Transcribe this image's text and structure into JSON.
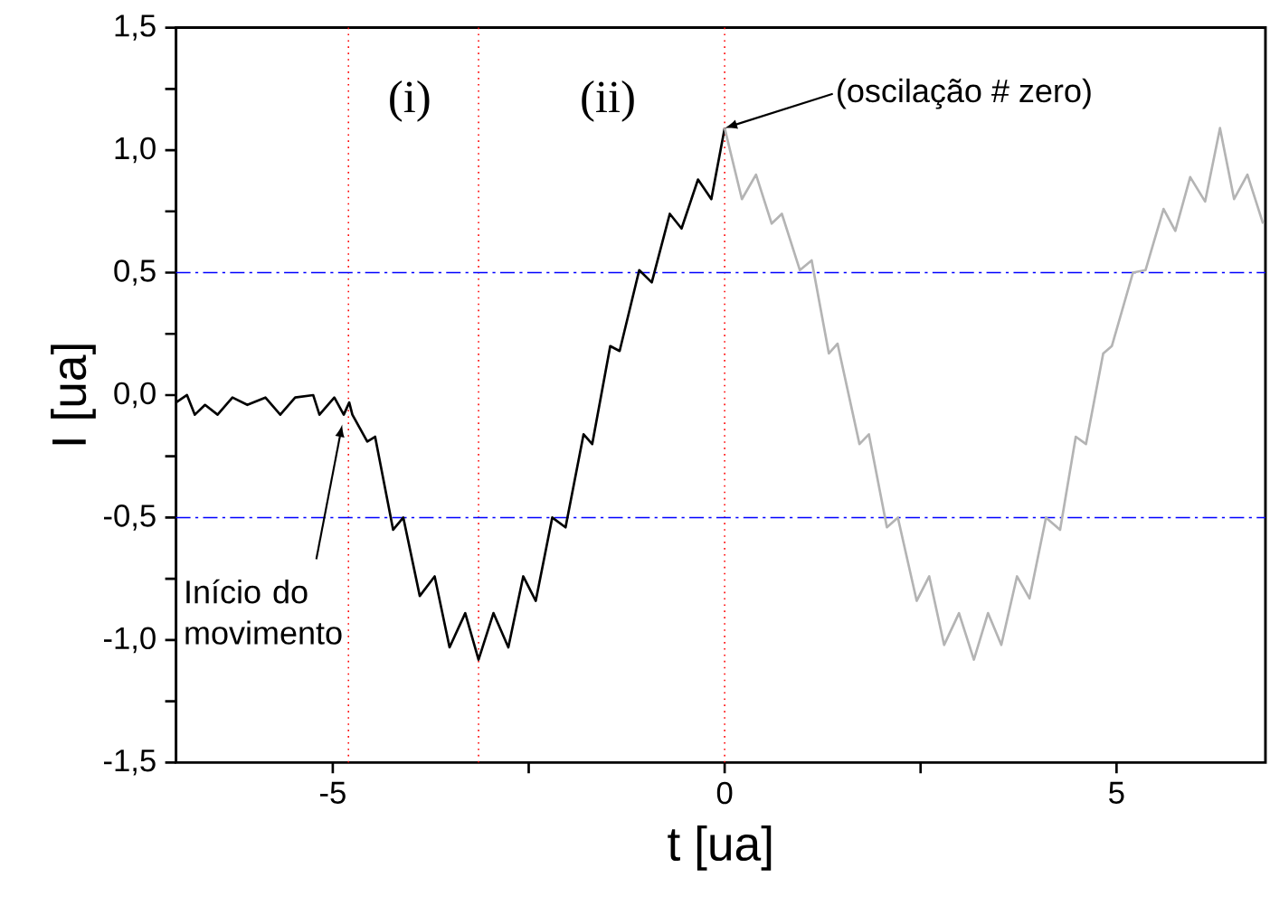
{
  "chart_data": {
    "type": "line",
    "xlabel": "t [ua]",
    "ylabel": "I [ua]",
    "xlim": [
      -7,
      6.9
    ],
    "ylim": [
      -1.5,
      1.5
    ],
    "xticks": [
      -5,
      {
        "value": -2.5,
        "label": null
      },
      0,
      {
        "value": 2.5,
        "label": null
      },
      5
    ],
    "yticks": [
      {
        "value": -1.5,
        "label": "-1,5"
      },
      {
        "value": -1.25,
        "label": null
      },
      {
        "value": -1.0,
        "label": "-1,0"
      },
      {
        "value": -0.75,
        "label": null
      },
      {
        "value": -0.5,
        "label": "-0,5"
      },
      {
        "value": -0.25,
        "label": null
      },
      {
        "value": 0.0,
        "label": "0,0"
      },
      {
        "value": 0.25,
        "label": null
      },
      {
        "value": 0.5,
        "label": "0,5"
      },
      {
        "value": 0.75,
        "label": null
      },
      {
        "value": 1.0,
        "label": "1,0"
      },
      {
        "value": 1.25,
        "label": null
      },
      {
        "value": 1.5,
        "label": "1,5"
      }
    ],
    "marker": "none",
    "series": [
      {
        "color": "#000000",
        "line_style": "solid",
        "x": [
          -7.0,
          -6.86,
          -6.76,
          -6.63,
          -6.47,
          -6.28,
          -6.09,
          -5.86,
          -5.67,
          -5.48,
          -5.25,
          -5.17,
          -4.98,
          -4.86,
          -4.79,
          -4.75,
          -4.56,
          -4.46,
          -4.23,
          -4.1,
          -3.89,
          -3.7,
          -3.51,
          -3.31,
          -3.14,
          -2.95,
          -2.76,
          -2.57,
          -2.41,
          -2.2,
          -2.03,
          -1.8,
          -1.69,
          -1.46,
          -1.34,
          -1.09,
          -0.93,
          -0.7,
          -0.55,
          -0.34,
          -0.17,
          0.0
        ],
        "values": [
          -0.03,
          0.0,
          -0.08,
          -0.04,
          -0.08,
          -0.01,
          -0.04,
          -0.01,
          -0.08,
          -0.01,
          0.0,
          -0.08,
          -0.01,
          -0.08,
          -0.03,
          -0.08,
          -0.19,
          -0.17,
          -0.55,
          -0.5,
          -0.82,
          -0.74,
          -1.03,
          -0.89,
          -1.08,
          -0.89,
          -1.03,
          -0.74,
          -0.84,
          -0.5,
          -0.54,
          -0.16,
          -0.2,
          0.2,
          0.18,
          0.51,
          0.46,
          0.74,
          0.68,
          0.88,
          0.8,
          1.09
        ]
      },
      {
        "color": "#b4b4b4",
        "line_style": "solid",
        "x": [
          0.0,
          0.22,
          0.4,
          0.6,
          0.73,
          0.96,
          1.11,
          1.33,
          1.44,
          1.72,
          1.84,
          2.07,
          2.21,
          2.45,
          2.61,
          2.8,
          2.99,
          3.18,
          3.36,
          3.53,
          3.73,
          3.89,
          4.1,
          4.28,
          4.48,
          4.61,
          4.83,
          4.94,
          5.21,
          5.37,
          5.6,
          5.75,
          5.94,
          6.13,
          6.32,
          6.5,
          6.67,
          6.87
        ],
        "values": [
          1.09,
          0.8,
          0.9,
          0.7,
          0.74,
          0.51,
          0.55,
          0.17,
          0.21,
          -0.2,
          -0.16,
          -0.54,
          -0.5,
          -0.84,
          -0.74,
          -1.02,
          -0.89,
          -1.08,
          -0.89,
          -1.02,
          -0.74,
          -0.83,
          -0.5,
          -0.55,
          -0.17,
          -0.2,
          0.17,
          0.2,
          0.5,
          0.51,
          0.76,
          0.67,
          0.89,
          0.79,
          1.09,
          0.8,
          0.9,
          0.7
        ]
      }
    ],
    "ref_lines": [
      {
        "axis": "x",
        "value": -4.8,
        "color": "#ff0000",
        "line_style": "dotted"
      },
      {
        "axis": "x",
        "value": -3.14,
        "color": "#ff0000",
        "line_style": "dotted"
      },
      {
        "axis": "x",
        "value": 0,
        "color": "#ff0000",
        "line_style": "dotted"
      },
      {
        "axis": "y",
        "value": 0.5,
        "color": "#0000ff",
        "line_style": "dashdot"
      },
      {
        "axis": "y",
        "value": -0.5,
        "color": "#0000ff",
        "line_style": "dashdot"
      }
    ],
    "annotations": [
      "(i)",
      "(ii)",
      {
        "text": "(oscilação # zero)",
        "x": 0,
        "y": 1.09
      },
      {
        "text": "Início do movimento",
        "x": -4.88,
        "y": -0.12
      }
    ]
  }
}
